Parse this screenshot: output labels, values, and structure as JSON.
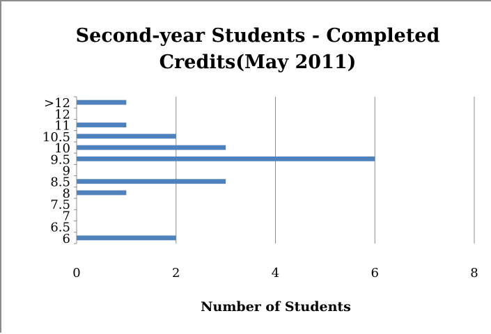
{
  "chart_data": {
    "type": "bar",
    "orientation": "horizontal",
    "title_lines": [
      "Second-year Students - Completed",
      "Credits(May 2011)"
    ],
    "xlabel": "Number of Students",
    "ylabel": "",
    "categories": [
      "6",
      "6.5",
      "7",
      "7.5",
      "8",
      "8.5",
      "9",
      "9.5",
      "10",
      "10.5",
      "11",
      "12",
      ">12"
    ],
    "values": [
      2,
      0,
      0,
      0,
      1,
      3,
      0,
      6,
      3,
      2,
      1,
      0,
      1
    ],
    "xlim": [
      0,
      8
    ],
    "x_ticks": [
      "0",
      "2",
      "4",
      "6",
      "8"
    ],
    "grid": "vertical",
    "legend": "none",
    "colors": {
      "bar": "#4f81bd",
      "grid": "#8c8c8c",
      "axis": "#8c8c8c"
    }
  }
}
